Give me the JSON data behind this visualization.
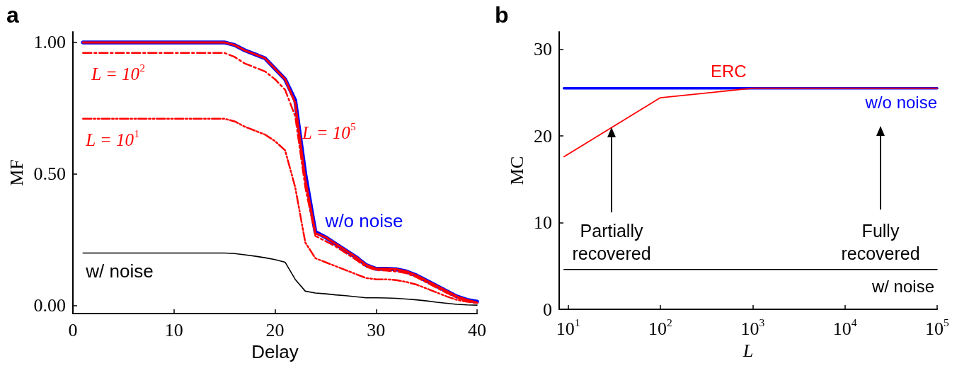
{
  "chart_data": [
    {
      "type": "line",
      "title": "a",
      "xlabel": "Delay",
      "ylabel": "MF",
      "x": [
        1,
        2,
        3,
        4,
        5,
        6,
        7,
        8,
        9,
        10,
        11,
        12,
        13,
        14,
        15,
        16,
        17,
        18,
        19,
        20,
        21,
        22,
        23,
        24,
        25,
        26,
        27,
        28,
        29,
        30,
        31,
        32,
        33,
        34,
        35,
        36,
        37,
        38,
        39,
        40
      ],
      "xlim": [
        0,
        40
      ],
      "xticks": [
        0,
        10,
        20,
        30,
        40
      ],
      "ylim": [
        -0.03,
        1.04
      ],
      "yticks": [
        {
          "value": 0,
          "label": "0.00"
        },
        {
          "value": 0.5,
          "label": "0.50"
        },
        {
          "value": 1,
          "label": "1.00"
        }
      ],
      "grid": false,
      "legend": false,
      "marker": "none",
      "series": [
        {
          "name": "w/o noise",
          "color": "#0000ff",
          "line_style": "solid",
          "values": [
            1,
            1,
            1,
            1,
            1,
            1,
            1,
            1,
            1,
            1,
            1,
            1,
            1,
            1,
            1,
            0.99,
            0.97,
            0.955,
            0.94,
            0.9,
            0.86,
            0.78,
            0.5,
            0.28,
            0.26,
            0.235,
            0.21,
            0.185,
            0.155,
            0.14,
            0.14,
            0.138,
            0.13,
            0.115,
            0.095,
            0.075,
            0.055,
            0.035,
            0.022,
            0.015
          ]
        },
        {
          "name": "L = 10$^{5}$",
          "color": "#ff0000",
          "line_style": "solid",
          "values": [
            1,
            1,
            1,
            1,
            1,
            1,
            1,
            1,
            1,
            1,
            1,
            1,
            1,
            1,
            1,
            0.99,
            0.97,
            0.955,
            0.94,
            0.9,
            0.86,
            0.77,
            0.48,
            0.275,
            0.26,
            0.235,
            0.21,
            0.185,
            0.155,
            0.14,
            0.14,
            0.138,
            0.13,
            0.115,
            0.095,
            0.075,
            0.055,
            0.035,
            0.022,
            0.012
          ]
        },
        {
          "name": "L = 10$^{2}$",
          "color": "#ff0000",
          "line_style": "dashed",
          "values": [
            0.96,
            0.96,
            0.96,
            0.96,
            0.96,
            0.96,
            0.96,
            0.96,
            0.96,
            0.96,
            0.96,
            0.96,
            0.96,
            0.96,
            0.96,
            0.945,
            0.92,
            0.905,
            0.89,
            0.86,
            0.82,
            0.72,
            0.45,
            0.265,
            0.245,
            0.225,
            0.2,
            0.175,
            0.148,
            0.135,
            0.133,
            0.13,
            0.123,
            0.108,
            0.088,
            0.068,
            0.048,
            0.03,
            0.018,
            0.01
          ]
        },
        {
          "name": "L = 10$^{1}$",
          "color": "#ff0000",
          "line_style": "dotted",
          "values": [
            0.71,
            0.71,
            0.71,
            0.71,
            0.71,
            0.71,
            0.71,
            0.71,
            0.71,
            0.71,
            0.71,
            0.71,
            0.71,
            0.71,
            0.71,
            0.7,
            0.68,
            0.665,
            0.65,
            0.625,
            0.59,
            0.45,
            0.24,
            0.18,
            0.165,
            0.15,
            0.135,
            0.12,
            0.105,
            0.1,
            0.1,
            0.097,
            0.09,
            0.08,
            0.065,
            0.05,
            0.035,
            0.022,
            0.015,
            0.01
          ]
        },
        {
          "name": "w/ noise",
          "color": "#000000",
          "line_style": "solid",
          "values": [
            0.2,
            0.2,
            0.2,
            0.2,
            0.2,
            0.2,
            0.2,
            0.2,
            0.2,
            0.2,
            0.2,
            0.2,
            0.2,
            0.2,
            0.2,
            0.198,
            0.193,
            0.188,
            0.182,
            0.175,
            0.165,
            0.1,
            0.055,
            0.048,
            0.045,
            0.041,
            0.038,
            0.034,
            0.03,
            0.03,
            0.029,
            0.028,
            0.025,
            0.022,
            0.018,
            0.013,
            0.009,
            0.005,
            0.003,
            0.002
          ]
        }
      ]
    },
    {
      "type": "line",
      "title": "b",
      "xlabel": "L",
      "ylabel": "MC",
      "log": "x",
      "x": [
        9,
        100000
      ],
      "xlim": [
        8,
        100000
      ],
      "xticks": [
        {
          "value": 10,
          "label": "10$^{1}$"
        },
        {
          "value": 100,
          "label": "10$^{2}$"
        },
        {
          "value": 1000,
          "label": "10$^{3}$"
        },
        {
          "value": 10000,
          "label": "10$^{4}$"
        },
        {
          "value": 100000,
          "label": "10$^{5}$"
        }
      ],
      "ylim": [
        0,
        32
      ],
      "yticks": [
        0,
        10,
        20,
        30
      ],
      "grid": false,
      "legend": false,
      "marker": "none",
      "series": [
        {
          "name": "w/o noise",
          "color": "#0000ff",
          "values": [
            25.5,
            25.5
          ]
        },
        {
          "name": "ERC",
          "color": "#ff0000",
          "x": [
            9,
            100,
            1000,
            10000,
            100000
          ],
          "values": [
            17.6,
            24.4,
            25.5,
            25.5,
            25.5
          ]
        },
        {
          "name": "w/ noise",
          "color": "#000000",
          "values": [
            4.6,
            4.6
          ]
        }
      ],
      "annotations": [
        "Partially\nrecovered",
        "Fully\nrecovered"
      ]
    }
  ]
}
